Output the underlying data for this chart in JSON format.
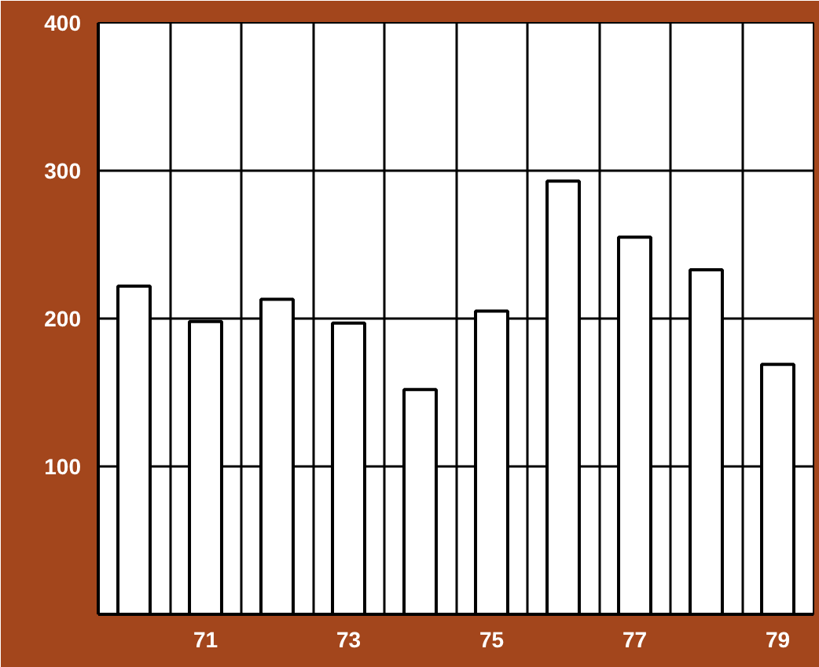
{
  "chart_data": {
    "type": "bar",
    "categories": [
      null,
      "71",
      null,
      "73",
      null,
      "75",
      null,
      "77",
      null,
      "79"
    ],
    "values": [
      222,
      198,
      213,
      197,
      152,
      205,
      293,
      255,
      233,
      169
    ],
    "color": "#ffffff",
    "ylim": [
      0,
      400
    ],
    "yticks": [
      100,
      200,
      300,
      400
    ],
    "grid": true
  }
}
